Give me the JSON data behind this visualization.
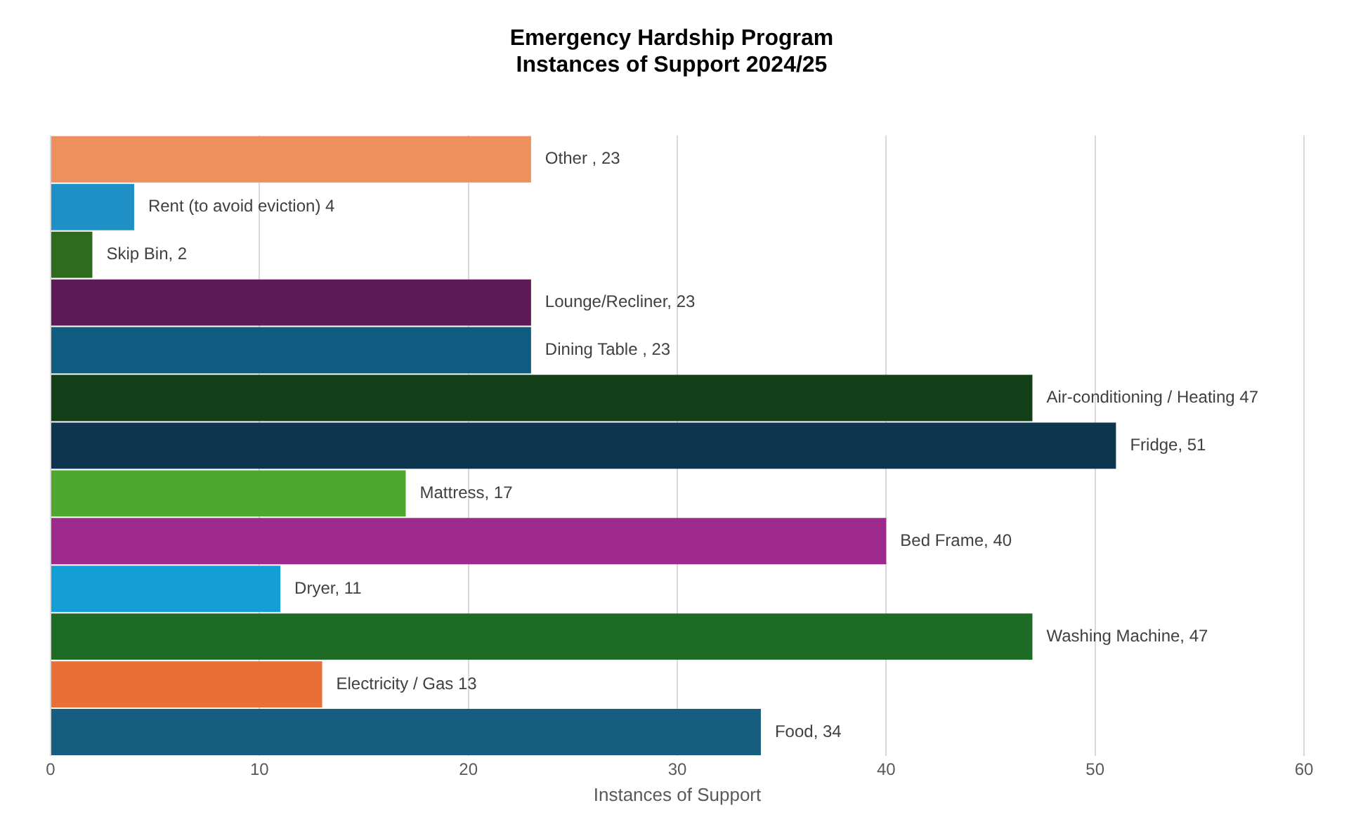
{
  "chart_data": {
    "type": "bar",
    "orientation": "horizontal",
    "title": "Emergency Hardship Program\nInstances of Support 2024/25",
    "xlabel": "Instances of Support",
    "categories": [
      null,
      null,
      null,
      null,
      null,
      null,
      null,
      null,
      null,
      null,
      null,
      null,
      null
    ],
    "values": [
      23,
      4,
      2,
      23,
      23,
      47,
      51,
      17,
      40,
      11,
      47,
      13,
      34
    ],
    "value_labels": [
      "Other , 23",
      "Rent (to avoid eviction) 4",
      "Skip Bin, 2",
      "Lounge/Recliner, 23",
      "Dining Table , 23",
      "Air-conditioning / Heating 47",
      "Fridge, 51",
      "Mattress, 17",
      "Bed Frame, 40",
      "Dryer, 11",
      "Washing Machine, 47",
      "Electricity / Gas 13",
      "Food, 34"
    ],
    "colors": [
      "#ee8f5e",
      "#1e90c6",
      "#2f6b1e",
      "#5e1a55",
      "#0f5c80",
      "#123f18",
      "#0d364e",
      "#4ea82f",
      "#9e2a8e",
      "#139fd6",
      "#1d6b25",
      "#e87036",
      "#165e80"
    ],
    "xlim": [
      0,
      60
    ],
    "xticks": [
      0,
      10,
      20,
      30,
      40,
      50,
      60
    ],
    "grid": "x",
    "legend": false
  }
}
